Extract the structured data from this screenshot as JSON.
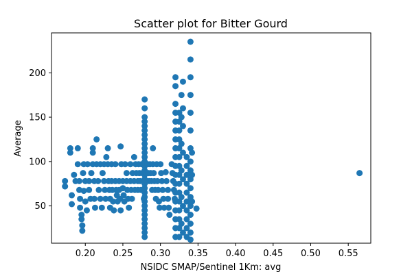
{
  "chart_data": {
    "type": "scatter",
    "title": "Scatter plot for Bitter Gourd",
    "xlabel": "NSIDC SMAP/Sentinel 1Km: avg",
    "ylabel": "Average",
    "xlim": [
      0.155,
      0.58
    ],
    "ylim": [
      8,
      245
    ],
    "xticks": [
      0.2,
      0.25,
      0.3,
      0.35,
      0.4,
      0.45,
      0.5,
      0.55
    ],
    "xtick_labels": [
      "0.20",
      "0.25",
      "0.30",
      "0.35",
      "0.40",
      "0.45",
      "0.50",
      "0.55"
    ],
    "yticks": [
      50,
      100,
      150,
      200
    ],
    "ytick_labels": [
      "50",
      "100",
      "150",
      "200"
    ],
    "grid": false,
    "marker_color": "#1f77b4",
    "series": [
      {
        "points": [
          [
            0.173,
            78
          ],
          [
            0.173,
            72
          ],
          [
            0.18,
            115
          ],
          [
            0.18,
            110
          ],
          [
            0.182,
            62
          ],
          [
            0.182,
            52
          ],
          [
            0.185,
            85
          ],
          [
            0.187,
            78
          ],
          [
            0.19,
            115
          ],
          [
            0.19,
            97
          ],
          [
            0.192,
            78
          ],
          [
            0.192,
            68
          ],
          [
            0.193,
            58
          ],
          [
            0.193,
            48
          ],
          [
            0.195,
            40
          ],
          [
            0.195,
            35
          ],
          [
            0.196,
            28
          ],
          [
            0.196,
            22
          ],
          [
            0.197,
            87
          ],
          [
            0.198,
            97
          ],
          [
            0.198,
            67
          ],
          [
            0.2,
            78
          ],
          [
            0.2,
            55
          ],
          [
            0.202,
            45
          ],
          [
            0.203,
            97
          ],
          [
            0.205,
            78
          ],
          [
            0.205,
            68
          ],
          [
            0.207,
            58
          ],
          [
            0.208,
            87
          ],
          [
            0.21,
            115
          ],
          [
            0.21,
            110
          ],
          [
            0.21,
            97
          ],
          [
            0.212,
            78
          ],
          [
            0.212,
            58
          ],
          [
            0.213,
            48
          ],
          [
            0.215,
            125
          ],
          [
            0.215,
            97
          ],
          [
            0.217,
            78
          ],
          [
            0.218,
            68
          ],
          [
            0.22,
            97
          ],
          [
            0.22,
            58
          ],
          [
            0.222,
            48
          ],
          [
            0.223,
            87
          ],
          [
            0.225,
            97
          ],
          [
            0.225,
            78
          ],
          [
            0.226,
            68
          ],
          [
            0.227,
            58
          ],
          [
            0.228,
            105
          ],
          [
            0.23,
            115
          ],
          [
            0.23,
            97
          ],
          [
            0.231,
            78
          ],
          [
            0.232,
            68
          ],
          [
            0.233,
            58
          ],
          [
            0.233,
            48
          ],
          [
            0.235,
            97
          ],
          [
            0.235,
            78
          ],
          [
            0.236,
            68
          ],
          [
            0.237,
            55
          ],
          [
            0.238,
            45
          ],
          [
            0.24,
            97
          ],
          [
            0.24,
            78
          ],
          [
            0.241,
            68
          ],
          [
            0.242,
            62
          ],
          [
            0.243,
            55
          ],
          [
            0.245,
            78
          ],
          [
            0.245,
            68
          ],
          [
            0.246,
            58
          ],
          [
            0.247,
            117
          ],
          [
            0.247,
            45
          ],
          [
            0.248,
            97
          ],
          [
            0.25,
            78
          ],
          [
            0.25,
            70
          ],
          [
            0.251,
            62
          ],
          [
            0.252,
            55
          ],
          [
            0.253,
            97
          ],
          [
            0.255,
            87
          ],
          [
            0.255,
            78
          ],
          [
            0.256,
            68
          ],
          [
            0.257,
            58
          ],
          [
            0.258,
            48
          ],
          [
            0.26,
            97
          ],
          [
            0.26,
            78
          ],
          [
            0.261,
            68
          ],
          [
            0.262,
            58
          ],
          [
            0.263,
            87
          ],
          [
            0.265,
            105
          ],
          [
            0.265,
            78
          ],
          [
            0.266,
            68
          ],
          [
            0.267,
            97
          ],
          [
            0.268,
            87
          ],
          [
            0.27,
            78
          ],
          [
            0.27,
            68
          ],
          [
            0.271,
            97
          ],
          [
            0.272,
            87
          ],
          [
            0.273,
            78
          ],
          [
            0.274,
            68
          ],
          [
            0.275,
            97
          ],
          [
            0.276,
            87
          ],
          [
            0.277,
            78
          ],
          [
            0.278,
            68
          ],
          [
            0.278,
            58
          ],
          [
            0.279,
            170
          ],
          [
            0.279,
            160
          ],
          [
            0.279,
            150
          ],
          [
            0.279,
            145
          ],
          [
            0.279,
            140
          ],
          [
            0.279,
            135
          ],
          [
            0.279,
            130
          ],
          [
            0.279,
            125
          ],
          [
            0.279,
            120
          ],
          [
            0.279,
            115
          ],
          [
            0.279,
            110
          ],
          [
            0.279,
            105
          ],
          [
            0.279,
            100
          ],
          [
            0.279,
            95
          ],
          [
            0.279,
            90
          ],
          [
            0.279,
            85
          ],
          [
            0.279,
            80
          ],
          [
            0.279,
            75
          ],
          [
            0.279,
            70
          ],
          [
            0.279,
            65
          ],
          [
            0.279,
            60
          ],
          [
            0.279,
            55
          ],
          [
            0.279,
            50
          ],
          [
            0.279,
            45
          ],
          [
            0.279,
            40
          ],
          [
            0.279,
            35
          ],
          [
            0.279,
            30
          ],
          [
            0.279,
            25
          ],
          [
            0.279,
            20
          ],
          [
            0.279,
            15
          ],
          [
            0.28,
            97
          ],
          [
            0.281,
            87
          ],
          [
            0.282,
            78
          ],
          [
            0.283,
            97
          ],
          [
            0.284,
            87
          ],
          [
            0.285,
            78
          ],
          [
            0.286,
            97
          ],
          [
            0.287,
            87
          ],
          [
            0.288,
            78
          ],
          [
            0.289,
            68
          ],
          [
            0.29,
            115
          ],
          [
            0.29,
            97
          ],
          [
            0.291,
            87
          ],
          [
            0.292,
            78
          ],
          [
            0.293,
            68
          ],
          [
            0.294,
            58
          ],
          [
            0.295,
            97
          ],
          [
            0.296,
            78
          ],
          [
            0.297,
            68
          ],
          [
            0.298,
            55
          ],
          [
            0.299,
            48
          ],
          [
            0.3,
            97
          ],
          [
            0.301,
            87
          ],
          [
            0.302,
            78
          ],
          [
            0.303,
            68
          ],
          [
            0.304,
            58
          ],
          [
            0.305,
            48
          ],
          [
            0.307,
            88
          ],
          [
            0.308,
            78
          ],
          [
            0.31,
            68
          ],
          [
            0.31,
            58
          ],
          [
            0.311,
            48
          ],
          [
            0.312,
            40
          ],
          [
            0.315,
            97
          ],
          [
            0.316,
            87
          ],
          [
            0.317,
            78
          ],
          [
            0.318,
            68
          ],
          [
            0.319,
            58
          ],
          [
            0.32,
            195
          ],
          [
            0.32,
            185
          ],
          [
            0.32,
            165
          ],
          [
            0.32,
            155
          ],
          [
            0.32,
            145
          ],
          [
            0.32,
            135
          ],
          [
            0.32,
            125
          ],
          [
            0.32,
            115
          ],
          [
            0.32,
            105
          ],
          [
            0.32,
            95
          ],
          [
            0.32,
            85
          ],
          [
            0.32,
            75
          ],
          [
            0.32,
            65
          ],
          [
            0.32,
            55
          ],
          [
            0.32,
            45
          ],
          [
            0.32,
            35
          ],
          [
            0.32,
            25
          ],
          [
            0.32,
            15
          ],
          [
            0.325,
            155
          ],
          [
            0.325,
            145
          ],
          [
            0.325,
            135
          ],
          [
            0.325,
            125
          ],
          [
            0.325,
            115
          ],
          [
            0.325,
            105
          ],
          [
            0.325,
            95
          ],
          [
            0.325,
            85
          ],
          [
            0.325,
            75
          ],
          [
            0.325,
            65
          ],
          [
            0.325,
            55
          ],
          [
            0.325,
            45
          ],
          [
            0.325,
            35
          ],
          [
            0.325,
            25
          ],
          [
            0.325,
            15
          ],
          [
            0.328,
            175
          ],
          [
            0.328,
            150
          ],
          [
            0.328,
            120
          ],
          [
            0.328,
            90
          ],
          [
            0.328,
            60
          ],
          [
            0.328,
            30
          ],
          [
            0.33,
            190
          ],
          [
            0.33,
            160
          ],
          [
            0.33,
            140
          ],
          [
            0.33,
            110
          ],
          [
            0.33,
            80
          ],
          [
            0.33,
            50
          ],
          [
            0.33,
            20
          ],
          [
            0.335,
            105
          ],
          [
            0.335,
            95
          ],
          [
            0.335,
            85
          ],
          [
            0.335,
            75
          ],
          [
            0.335,
            65
          ],
          [
            0.335,
            55
          ],
          [
            0.335,
            45
          ],
          [
            0.335,
            35
          ],
          [
            0.335,
            25
          ],
          [
            0.335,
            15
          ],
          [
            0.34,
            235
          ],
          [
            0.34,
            215
          ],
          [
            0.34,
            195
          ],
          [
            0.34,
            175
          ],
          [
            0.34,
            155
          ],
          [
            0.34,
            135
          ],
          [
            0.34,
            115
          ],
          [
            0.34,
            100
          ],
          [
            0.34,
            90
          ],
          [
            0.34,
            80
          ],
          [
            0.34,
            70
          ],
          [
            0.34,
            60
          ],
          [
            0.34,
            50
          ],
          [
            0.34,
            40
          ],
          [
            0.34,
            30
          ],
          [
            0.34,
            20
          ],
          [
            0.34,
            12
          ],
          [
            0.342,
            110
          ],
          [
            0.342,
            85
          ],
          [
            0.342,
            55
          ],
          [
            0.348,
            47
          ],
          [
            0.565,
            87
          ]
        ]
      }
    ]
  }
}
